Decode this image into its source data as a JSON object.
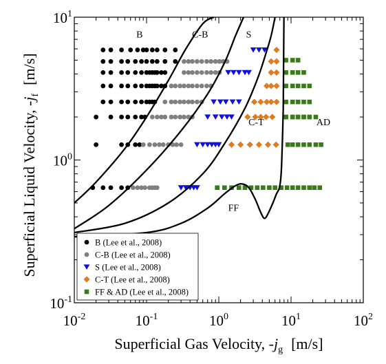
{
  "chart_data": {
    "type": "scatter",
    "xscale": "log",
    "yscale": "log",
    "xlim": [
      0.01,
      100
    ],
    "ylim": [
      0.1,
      10
    ],
    "grid": false,
    "legend_position": "bottom-left",
    "xlabel_text": "Superficial Gas Velocity,  -",
    "xlabel_symbol": "j",
    "xlabel_sub": "g",
    "xlabel_unit": "[m/s]",
    "ylabel_text": "Superficial Liquid Velocity,  -",
    "ylabel_symbol": "j",
    "ylabel_sub": "f",
    "ylabel_unit": "[m/s]",
    "x_ticks": [
      {
        "base": "10",
        "exp": "-2",
        "value": 0.01
      },
      {
        "base": "10",
        "exp": "-1",
        "value": 0.1
      },
      {
        "base": "10",
        "exp": "0",
        "value": 1
      },
      {
        "base": "10",
        "exp": "1",
        "value": 10
      },
      {
        "base": "10",
        "exp": "2",
        "value": 100
      }
    ],
    "y_ticks": [
      {
        "base": "10",
        "exp": "-1",
        "value": 0.1
      },
      {
        "base": "10",
        "exp": "0",
        "value": 1
      },
      {
        "base": "10",
        "exp": "1",
        "value": 10
      }
    ],
    "region_labels": [
      {
        "text": "B",
        "x": 0.08,
        "y": 7.2
      },
      {
        "text": "C-B",
        "x": 0.55,
        "y": 7.2
      },
      {
        "text": "S",
        "x": 2.6,
        "y": 7.2
      },
      {
        "text": "C-T",
        "x": 3.3,
        "y": 1.75
      },
      {
        "text": "AD",
        "x": 28,
        "y": 1.75
      },
      {
        "text": "FF",
        "x": 1.6,
        "y": 0.44
      }
    ],
    "series": [
      {
        "name": "B (Lee et al., 2008)",
        "marker": "circle",
        "color": "#000000",
        "x": [
          0.025,
          0.032,
          0.045,
          0.06,
          0.075,
          0.09,
          0.1,
          0.12,
          0.14,
          0.18,
          0.25,
          0.025,
          0.032,
          0.045,
          0.055,
          0.07,
          0.085,
          0.1,
          0.12,
          0.14,
          0.18,
          0.25,
          0.025,
          0.032,
          0.045,
          0.055,
          0.07,
          0.085,
          0.1,
          0.11,
          0.12,
          0.13,
          0.14,
          0.16,
          0.18,
          0.025,
          0.032,
          0.045,
          0.055,
          0.07,
          0.085,
          0.1,
          0.11,
          0.12,
          0.13,
          0.14,
          0.16,
          0.18,
          0.025,
          0.032,
          0.045,
          0.055,
          0.07,
          0.085,
          0.1,
          0.11,
          0.12,
          0.13,
          0.02,
          0.032,
          0.045,
          0.055,
          0.07,
          0.085,
          0.095,
          0.02,
          0.045,
          0.055,
          0.07,
          0.08,
          0.018,
          0.025,
          0.032,
          0.045,
          0.055
        ],
        "y": [
          5.9,
          5.9,
          5.9,
          5.9,
          5.9,
          5.9,
          5.9,
          5.9,
          5.9,
          5.9,
          5.9,
          4.9,
          4.9,
          4.9,
          4.9,
          4.9,
          4.9,
          4.9,
          4.9,
          4.9,
          4.9,
          4.9,
          4.1,
          4.1,
          4.1,
          4.1,
          4.1,
          4.1,
          4.1,
          4.1,
          4.1,
          4.1,
          4.1,
          4.1,
          4.1,
          3.3,
          3.3,
          3.3,
          3.3,
          3.3,
          3.3,
          3.3,
          3.3,
          3.3,
          3.3,
          3.3,
          3.3,
          3.3,
          2.55,
          2.55,
          2.55,
          2.55,
          2.55,
          2.55,
          2.55,
          2.55,
          2.55,
          2.55,
          2.0,
          2.0,
          2.0,
          2.0,
          2.0,
          2.0,
          2.0,
          1.28,
          1.28,
          1.28,
          1.28,
          1.28,
          0.64,
          0.64,
          0.64,
          0.64,
          0.64
        ]
      },
      {
        "name": "C-B (Lee et al., 2008)",
        "marker": "circle",
        "color": "#808080",
        "x": [
          0.33,
          0.38,
          0.43,
          0.5,
          0.58,
          0.68,
          0.78,
          0.9,
          1.02,
          1.15,
          1.3,
          0.33,
          0.38,
          0.43,
          0.5,
          0.58,
          0.68,
          0.78,
          0.9,
          1.02,
          0.22,
          0.25,
          0.29,
          0.33,
          0.38,
          0.43,
          0.5,
          0.58,
          0.68,
          0.78,
          0.18,
          0.22,
          0.25,
          0.29,
          0.33,
          0.38,
          0.43,
          0.5,
          0.58,
          0.12,
          0.14,
          0.16,
          0.18,
          0.22,
          0.25,
          0.29,
          0.33,
          0.38,
          0.43,
          0.09,
          0.11,
          0.13,
          0.15,
          0.17,
          0.2,
          0.23,
          0.26,
          0.3,
          0.065,
          0.075,
          0.085,
          0.095,
          0.11,
          0.12,
          0.13,
          0.14
        ],
        "y": [
          4.9,
          4.9,
          4.9,
          4.9,
          4.9,
          4.9,
          4.9,
          4.9,
          4.9,
          4.9,
          4.9,
          4.1,
          4.1,
          4.1,
          4.1,
          4.1,
          4.1,
          4.1,
          4.1,
          4.1,
          3.3,
          3.3,
          3.3,
          3.3,
          3.3,
          3.3,
          3.3,
          3.3,
          3.3,
          3.3,
          2.55,
          2.55,
          2.55,
          2.55,
          2.55,
          2.55,
          2.55,
          2.55,
          2.55,
          2.0,
          2.0,
          2.0,
          2.0,
          2.0,
          2.0,
          2.0,
          2.0,
          2.0,
          2.0,
          1.28,
          1.28,
          1.28,
          1.28,
          1.28,
          1.28,
          1.28,
          1.28,
          1.28,
          0.64,
          0.64,
          0.64,
          0.64,
          0.64,
          0.64,
          0.64,
          0.64
        ]
      },
      {
        "name": "S (Lee et al., 2008)",
        "marker": "triangle-down",
        "color": "#1010e0",
        "x": [
          3.0,
          3.6,
          4.3,
          1.35,
          1.6,
          1.9,
          2.3,
          2.6,
          0.85,
          1.05,
          1.25,
          1.55,
          1.9,
          0.7,
          0.9,
          1.1,
          1.3,
          1.5,
          0.5,
          0.6,
          0.7,
          0.8,
          0.9,
          1.0,
          0.3,
          0.35,
          0.4,
          0.45,
          0.5
        ],
        "y": [
          5.9,
          5.9,
          5.9,
          4.1,
          4.1,
          4.1,
          4.1,
          4.1,
          2.55,
          2.55,
          2.55,
          2.55,
          2.55,
          2.0,
          2.0,
          2.0,
          2.0,
          2.0,
          1.28,
          1.28,
          1.28,
          1.28,
          1.28,
          1.28,
          0.64,
          0.64,
          0.64,
          0.64,
          0.64
        ]
      },
      {
        "name": "C-T (Lee et al., 2008)",
        "marker": "diamond",
        "color": "#e07b20",
        "x": [
          6.3,
          5.3,
          6.3,
          5.3,
          6.3,
          4.6,
          5.3,
          6.3,
          3.1,
          3.8,
          4.6,
          5.3,
          6.3,
          2.5,
          3.2,
          3.8,
          4.5,
          5.5,
          1.5,
          2.0,
          2.7,
          3.6,
          4.8,
          6.2
        ],
        "y": [
          5.9,
          4.9,
          4.9,
          4.1,
          4.1,
          3.3,
          3.3,
          3.3,
          2.55,
          2.55,
          2.55,
          2.55,
          2.55,
          2.0,
          2.0,
          2.0,
          2.0,
          2.0,
          1.28,
          1.28,
          1.28,
          1.28,
          1.28,
          1.28
        ]
      },
      {
        "name": "FF & AD (Lee et al., 2008)",
        "marker": "square",
        "color": "#3b7a1a",
        "x": [
          8.5,
          10.5,
          12.5,
          8.5,
          10.5,
          12.5,
          15,
          8.5,
          10.5,
          12.5,
          15,
          18,
          8.5,
          10.5,
          12.5,
          15,
          18,
          8.5,
          10.5,
          12.5,
          15,
          18,
          8.5,
          10.5,
          12.5,
          15,
          18,
          22,
          9.0,
          10.5,
          12.5,
          15,
          18,
          22,
          26,
          0.95,
          1.2,
          1.5,
          1.9,
          2.3,
          2.8,
          3.4,
          4.1,
          5.0,
          6.0,
          7.3,
          8.8,
          10.5,
          12.5,
          15,
          18,
          21,
          25
        ],
        "y": [
          5.0,
          5.0,
          5.0,
          4.1,
          4.1,
          4.1,
          4.1,
          3.3,
          3.3,
          3.3,
          3.3,
          3.3,
          2.55,
          2.55,
          2.55,
          2.55,
          2.55,
          2.0,
          2.0,
          2.0,
          2.0,
          2.0,
          2.0,
          2.0,
          2.0,
          2.0,
          2.0,
          2.0,
          1.28,
          1.28,
          1.28,
          1.28,
          1.28,
          1.28,
          1.28,
          0.64,
          0.64,
          0.64,
          0.64,
          0.64,
          0.64,
          0.64,
          0.64,
          0.64,
          0.64,
          0.64,
          0.64,
          0.64,
          0.64,
          0.64,
          0.64,
          0.64,
          0.64
        ]
      }
    ],
    "boundaries": [
      {
        "name": "B/C-B",
        "x": [
          0.01,
          0.02,
          0.05,
          0.1,
          0.2,
          0.35,
          0.6,
          0.85
        ],
        "y": [
          0.5,
          0.7,
          1.2,
          2.0,
          3.6,
          6.0,
          9.0,
          10
        ]
      },
      {
        "name": "C-B/S",
        "x": [
          0.01,
          0.03,
          0.1,
          0.3,
          0.7,
          1.2,
          1.7,
          2.2
        ],
        "y": [
          0.33,
          0.48,
          0.85,
          1.6,
          2.9,
          4.8,
          7.4,
          10
        ]
      },
      {
        "name": "S/C-T",
        "x": [
          0.01,
          0.05,
          0.2,
          0.6,
          1.2,
          2.3,
          3.5,
          4.5,
          5.3,
          6.0
        ],
        "y": [
          0.31,
          0.36,
          0.5,
          0.8,
          1.3,
          2.3,
          3.8,
          5.6,
          7.4,
          10
        ]
      },
      {
        "name": "FF/AD",
        "x": [
          0.01,
          0.1,
          0.3,
          0.7,
          1.2,
          1.7,
          2.1,
          2.6,
          3.2,
          3.8,
          4.3,
          4.9,
          5.6,
          6.3,
          6.9,
          7.3,
          7.6,
          7.8
        ],
        "y": [
          0.29,
          0.31,
          0.36,
          0.46,
          0.58,
          0.66,
          0.68,
          0.64,
          0.53,
          0.43,
          0.39,
          0.43,
          0.5,
          0.58,
          0.64,
          0.8,
          1.4,
          2.3
        ]
      }
    ]
  }
}
